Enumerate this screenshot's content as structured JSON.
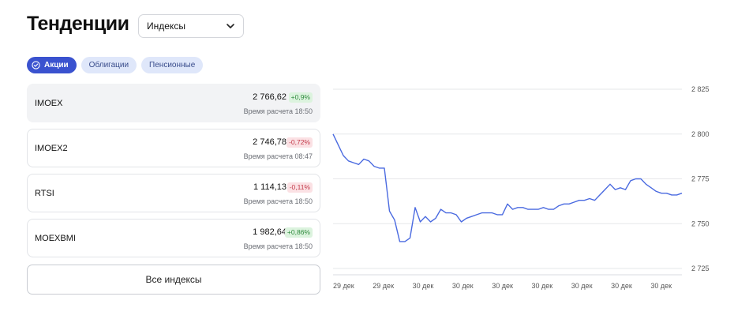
{
  "page_title": "Тенденции",
  "select": {
    "value": "Индексы",
    "icon": "chevron-down-icon"
  },
  "tabs": [
    {
      "label": "Акции",
      "active": true,
      "icon": "check-circle-icon"
    },
    {
      "label": "Облигации",
      "active": false
    },
    {
      "label": "Пенсионные",
      "active": false
    }
  ],
  "indices": [
    {
      "name": "IMOEX",
      "value": "2 766,62",
      "change": "+0,9%",
      "direction": "up",
      "time": "Время расчета 18:50",
      "selected": true
    },
    {
      "name": "IMOEX2",
      "value": "2 746,78",
      "change": "-0,72%",
      "direction": "down",
      "time": "Время расчета 08:47",
      "selected": false
    },
    {
      "name": "RTSI",
      "value": "1 114,13",
      "change": "-0,11%",
      "direction": "down",
      "time": "Время расчета 18:50",
      "selected": false
    },
    {
      "name": "MOEXBMI",
      "value": "1 982,64",
      "change": "+0,86%",
      "direction": "up",
      "time": "Время расчета 18:50",
      "selected": false
    }
  ],
  "all_button": "Все индексы",
  "colors": {
    "line": "#4a6ae0",
    "accent": "#3a52cf",
    "up": "#2f8a3d",
    "down": "#c23a4a"
  },
  "chart_data": {
    "type": "line",
    "ylim": [
      2720,
      2830
    ],
    "yticks": [
      2825,
      2800,
      2775,
      2750,
      2725
    ],
    "ytick_labels": [
      "2 825",
      "2 800",
      "2 775",
      "2 750",
      "2 725"
    ],
    "xtick_labels": [
      "29 дек",
      "29 дек",
      "30 дек",
      "30 дек",
      "30 дек",
      "30 дек",
      "30 дек",
      "30 дек",
      "30 дек"
    ],
    "grid": true,
    "series": [
      {
        "values": [
          2800,
          2794,
          2788,
          2785,
          2784,
          2783,
          2786,
          2785,
          2782,
          2781,
          2781,
          2757,
          2752,
          2740,
          2740,
          2742,
          2759,
          2751,
          2754,
          2751,
          2753,
          2758,
          2756,
          2756,
          2755,
          2751,
          2753,
          2754,
          2755,
          2756,
          2756,
          2756,
          2755,
          2755,
          2761,
          2758,
          2759,
          2759,
          2758,
          2758,
          2758,
          2759,
          2758,
          2758,
          2760,
          2761,
          2761,
          2762,
          2763,
          2763,
          2764,
          2763,
          2766,
          2769,
          2772,
          2769,
          2770,
          2769,
          2774,
          2775,
          2775,
          2772,
          2770,
          2768,
          2767,
          2767,
          2766,
          2766,
          2767
        ]
      }
    ]
  }
}
